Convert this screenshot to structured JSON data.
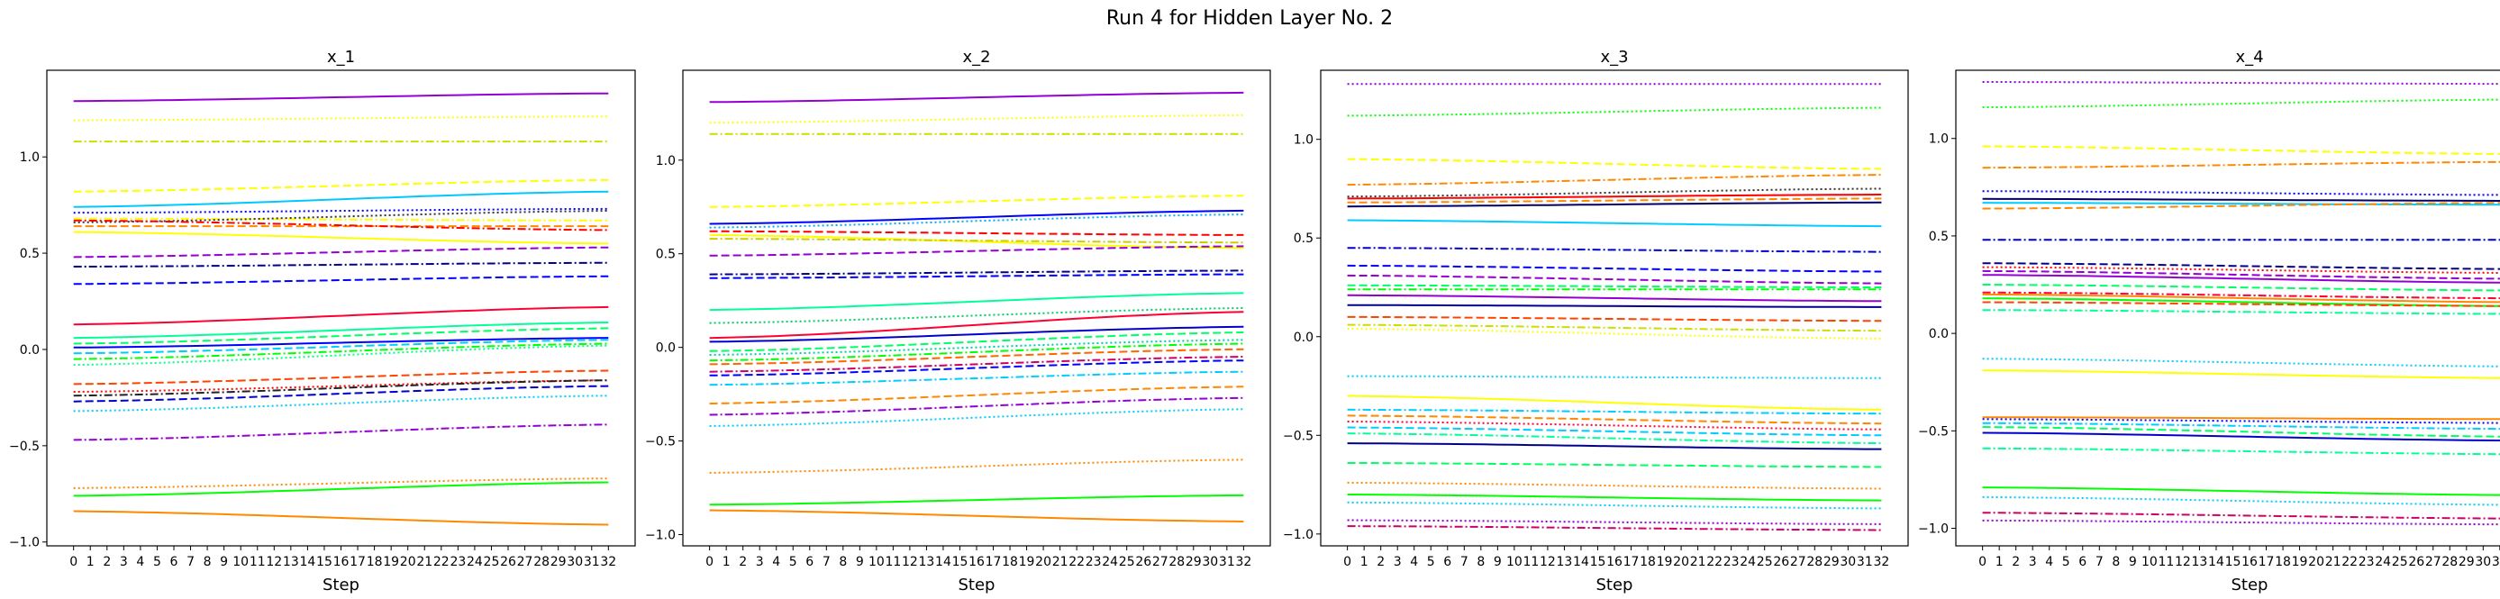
{
  "figure": {
    "title": "Run 4 for Hidden Layer No. 2"
  },
  "chart_data": [
    {
      "type": "line",
      "title": "x_1",
      "xlabel": "Step",
      "ylabel": "",
      "xlim": [
        -1.6,
        33.6
      ],
      "ylim": [
        -1.02,
        1.45
      ],
      "yticks": [
        -1.0,
        -0.5,
        0.0,
        0.5,
        1.0
      ],
      "yticklabels": [
        "−1.0",
        "−0.5",
        "0.0",
        "0.5",
        "1.0"
      ],
      "series": [
        {
          "color": "#9400d3",
          "dash": "solid",
          "start": 1.29,
          "end": 1.33
        },
        {
          "color": "#ffff00",
          "dash": "dot",
          "start": 1.19,
          "end": 1.21
        },
        {
          "color": "#ccdd00",
          "dash": "dashdot",
          "start": 1.08,
          "end": 1.08
        },
        {
          "color": "#ffff00",
          "dash": "dash",
          "start": 0.82,
          "end": 0.88
        },
        {
          "color": "#00c8ff",
          "dash": "solid",
          "start": 0.74,
          "end": 0.82
        },
        {
          "color": "#0000ff",
          "dash": "dot",
          "start": 0.71,
          "end": 0.73
        },
        {
          "color": "#ffff00",
          "dash": "dashdot",
          "start": 0.68,
          "end": 0.67
        },
        {
          "color": "#333333",
          "dash": "dot",
          "start": 0.66,
          "end": 0.72
        },
        {
          "color": "#ff8800",
          "dash": "dash",
          "start": 0.64,
          "end": 0.64
        },
        {
          "color": "#ff0000",
          "dash": "dashdot",
          "start": 0.67,
          "end": 0.62
        },
        {
          "color": "#ffff00",
          "dash": "solid",
          "start": 0.61,
          "end": 0.55
        },
        {
          "color": "#9400d3",
          "dash": "dash",
          "start": 0.48,
          "end": 0.53
        },
        {
          "color": "#000088",
          "dash": "dashdot",
          "start": 0.43,
          "end": 0.45
        },
        {
          "color": "#0000ff",
          "dash": "dash",
          "start": 0.34,
          "end": 0.38
        },
        {
          "color": "#ff0033",
          "dash": "solid",
          "start": 0.13,
          "end": 0.22
        },
        {
          "color": "#00ff99",
          "dash": "solid",
          "start": 0.06,
          "end": 0.14
        },
        {
          "color": "#00ff66",
          "dash": "dash",
          "start": 0.03,
          "end": 0.11
        },
        {
          "color": "#0000ff",
          "dash": "solid",
          "start": 0.01,
          "end": 0.06
        },
        {
          "color": "#00ccff",
          "dash": "dash",
          "start": -0.02,
          "end": 0.05
        },
        {
          "color": "#00ff00",
          "dash": "dashdot",
          "start": -0.05,
          "end": 0.03
        },
        {
          "color": "#00ff88",
          "dash": "dot",
          "start": -0.08,
          "end": 0.02
        },
        {
          "color": "#ff4400",
          "dash": "dash",
          "start": -0.18,
          "end": -0.11
        },
        {
          "color": "#ff0000",
          "dash": "dot",
          "start": -0.22,
          "end": -0.16
        },
        {
          "color": "#222222",
          "dash": "dashdot",
          "start": -0.24,
          "end": -0.16
        },
        {
          "color": "#0000cc",
          "dash": "dash",
          "start": -0.27,
          "end": -0.19
        },
        {
          "color": "#00ccff",
          "dash": "dot",
          "start": -0.32,
          "end": -0.24
        },
        {
          "color": "#9400d3",
          "dash": "dashdot",
          "start": -0.47,
          "end": -0.39
        },
        {
          "color": "#ff8800",
          "dash": "dot",
          "start": -0.72,
          "end": -0.67
        },
        {
          "color": "#00ff00",
          "dash": "solid",
          "start": -0.76,
          "end": -0.69
        },
        {
          "color": "#ff8800",
          "dash": "solid",
          "start": -0.84,
          "end": -0.91
        }
      ]
    },
    {
      "type": "line",
      "title": "x_2",
      "xlabel": "Step",
      "ylabel": "",
      "xlim": [
        -1.6,
        33.6
      ],
      "ylim": [
        -1.06,
        1.48
      ],
      "yticks": [
        -1.0,
        -0.5,
        0.0,
        0.5,
        1.0
      ],
      "yticklabels": [
        "−1.0",
        "−0.5",
        "0.0",
        "0.5",
        "1.0"
      ],
      "series": [
        {
          "color": "#9400d3",
          "dash": "solid",
          "start": 1.31,
          "end": 1.36
        },
        {
          "color": "#ffff00",
          "dash": "dot",
          "start": 1.2,
          "end": 1.24
        },
        {
          "color": "#ccdd00",
          "dash": "dashdot",
          "start": 1.14,
          "end": 1.14
        },
        {
          "color": "#ffff00",
          "dash": "dash",
          "start": 0.75,
          "end": 0.81
        },
        {
          "color": "#0000ff",
          "dash": "solid",
          "start": 0.66,
          "end": 0.73
        },
        {
          "color": "#00aaff",
          "dash": "dot",
          "start": 0.64,
          "end": 0.71
        },
        {
          "color": "#ff0000",
          "dash": "dash",
          "start": 0.62,
          "end": 0.6
        },
        {
          "color": "#ffff00",
          "dash": "solid",
          "start": 0.6,
          "end": 0.53
        },
        {
          "color": "#cccc00",
          "dash": "dashdot",
          "start": 0.58,
          "end": 0.56
        },
        {
          "color": "#9400d3",
          "dash": "dash",
          "start": 0.49,
          "end": 0.54
        },
        {
          "color": "#000088",
          "dash": "dashdot",
          "start": 0.39,
          "end": 0.41
        },
        {
          "color": "#0000ff",
          "dash": "dash",
          "start": 0.37,
          "end": 0.39
        },
        {
          "color": "#00ff99",
          "dash": "solid",
          "start": 0.2,
          "end": 0.29
        },
        {
          "color": "#00cc66",
          "dash": "dot",
          "start": 0.13,
          "end": 0.21
        },
        {
          "color": "#ff0033",
          "dash": "solid",
          "start": 0.05,
          "end": 0.19
        },
        {
          "color": "#0000cc",
          "dash": "solid",
          "start": 0.03,
          "end": 0.11
        },
        {
          "color": "#00ff66",
          "dash": "dash",
          "start": -0.02,
          "end": 0.08
        },
        {
          "color": "#00ccaa",
          "dash": "dot",
          "start": -0.04,
          "end": 0.04
        },
        {
          "color": "#00ff00",
          "dash": "dashdot",
          "start": -0.07,
          "end": 0.02
        },
        {
          "color": "#ff6600",
          "dash": "dash",
          "start": -0.09,
          "end": -0.01
        },
        {
          "color": "#cc0066",
          "dash": "dashdot",
          "start": -0.13,
          "end": -0.05
        },
        {
          "color": "#0000ff",
          "dash": "dash",
          "start": -0.15,
          "end": -0.07
        },
        {
          "color": "#00ccff",
          "dash": "dashdot",
          "start": -0.2,
          "end": -0.13
        },
        {
          "color": "#ff8800",
          "dash": "dash",
          "start": -0.3,
          "end": -0.21
        },
        {
          "color": "#9400d3",
          "dash": "dashdot",
          "start": -0.36,
          "end": -0.27
        },
        {
          "color": "#00ccff",
          "dash": "dot",
          "start": -0.42,
          "end": -0.33
        },
        {
          "color": "#ff8800",
          "dash": "dot",
          "start": -0.67,
          "end": -0.6
        },
        {
          "color": "#00ff00",
          "dash": "solid",
          "start": -0.84,
          "end": -0.79
        },
        {
          "color": "#ff8800",
          "dash": "solid",
          "start": -0.87,
          "end": -0.93
        }
      ]
    },
    {
      "type": "line",
      "title": "x_3",
      "xlabel": "Step",
      "ylabel": "",
      "xlim": [
        -1.6,
        33.6
      ],
      "ylim": [
        -1.06,
        1.35
      ],
      "yticks": [
        -1.0,
        -0.5,
        0.0,
        0.5,
        1.0
      ],
      "yticklabels": [
        "−1.0",
        "−0.5",
        "0.0",
        "0.5",
        "1.0"
      ],
      "series": [
        {
          "color": "#9400d3",
          "dash": "dot",
          "start": 1.28,
          "end": 1.28
        },
        {
          "color": "#00ff00",
          "dash": "dot",
          "start": 1.12,
          "end": 1.16
        },
        {
          "color": "#ffff00",
          "dash": "dash",
          "start": 0.9,
          "end": 0.85
        },
        {
          "color": "#ff8800",
          "dash": "dashdot",
          "start": 0.77,
          "end": 0.82
        },
        {
          "color": "#333333",
          "dash": "dot",
          "start": 0.71,
          "end": 0.75
        },
        {
          "color": "#ff0000",
          "dash": "solid",
          "start": 0.7,
          "end": 0.72
        },
        {
          "color": "#ff8800",
          "dash": "dash",
          "start": 0.68,
          "end": 0.7
        },
        {
          "color": "#000066",
          "dash": "solid",
          "start": 0.66,
          "end": 0.68
        },
        {
          "color": "#00ccff",
          "dash": "solid",
          "start": 0.59,
          "end": 0.56
        },
        {
          "color": "#0000cc",
          "dash": "dashdot",
          "start": 0.45,
          "end": 0.43
        },
        {
          "color": "#0000ff",
          "dash": "dash",
          "start": 0.36,
          "end": 0.33
        },
        {
          "color": "#9400d3",
          "dash": "dash",
          "start": 0.31,
          "end": 0.27
        },
        {
          "color": "#00ff66",
          "dash": "dash",
          "start": 0.26,
          "end": 0.25
        },
        {
          "color": "#00ff00",
          "dash": "dashdot",
          "start": 0.24,
          "end": 0.24
        },
        {
          "color": "#9400d3",
          "dash": "solid",
          "start": 0.21,
          "end": 0.18
        },
        {
          "color": "#000088",
          "dash": "solid",
          "start": 0.16,
          "end": 0.15
        },
        {
          "color": "#ff4400",
          "dash": "dash",
          "start": 0.1,
          "end": 0.08
        },
        {
          "color": "#ccdd00",
          "dash": "dashdot",
          "start": 0.06,
          "end": 0.03
        },
        {
          "color": "#ffff00",
          "dash": "dot",
          "start": 0.04,
          "end": -0.01
        },
        {
          "color": "#00ccff",
          "dash": "dot",
          "start": -0.2,
          "end": -0.21
        },
        {
          "color": "#ffff00",
          "dash": "solid",
          "start": -0.3,
          "end": -0.37
        },
        {
          "color": "#00ccff",
          "dash": "dashdot",
          "start": -0.37,
          "end": -0.39
        },
        {
          "color": "#ff8800",
          "dash": "dash",
          "start": -0.4,
          "end": -0.44
        },
        {
          "color": "#ff0033",
          "dash": "dot",
          "start": -0.43,
          "end": -0.47
        },
        {
          "color": "#00ccff",
          "dash": "dash",
          "start": -0.46,
          "end": -0.5
        },
        {
          "color": "#00ff99",
          "dash": "dashdot",
          "start": -0.49,
          "end": -0.54
        },
        {
          "color": "#000088",
          "dash": "solid",
          "start": -0.54,
          "end": -0.57
        },
        {
          "color": "#00ff66",
          "dash": "dash",
          "start": -0.64,
          "end": -0.66
        },
        {
          "color": "#ff8800",
          "dash": "dot",
          "start": -0.74,
          "end": -0.77
        },
        {
          "color": "#00ff00",
          "dash": "solid",
          "start": -0.8,
          "end": -0.83
        },
        {
          "color": "#00ccff",
          "dash": "dot",
          "start": -0.84,
          "end": -0.87
        },
        {
          "color": "#9400d3",
          "dash": "dot",
          "start": -0.93,
          "end": -0.95
        },
        {
          "color": "#cc0066",
          "dash": "dashdot",
          "start": -0.96,
          "end": -0.98
        }
      ]
    },
    {
      "type": "line",
      "title": "x_4",
      "xlabel": "Step",
      "ylabel": "",
      "xlim": [
        -1.6,
        33.6
      ],
      "ylim": [
        -1.09,
        1.35
      ],
      "yticks": [
        -1.0,
        -0.5,
        0.0,
        0.5,
        1.0
      ],
      "yticklabels": [
        "−1.0",
        "−0.5",
        "0.0",
        "0.5",
        "1.0"
      ],
      "series": [
        {
          "color": "#9400d3",
          "dash": "dot",
          "start": 1.29,
          "end": 1.28
        },
        {
          "color": "#00ff00",
          "dash": "dot",
          "start": 1.16,
          "end": 1.2
        },
        {
          "color": "#ffff00",
          "dash": "dash",
          "start": 0.96,
          "end": 0.92
        },
        {
          "color": "#ff8800",
          "dash": "dashdot",
          "start": 0.85,
          "end": 0.88
        },
        {
          "color": "#0000ff",
          "dash": "dot",
          "start": 0.73,
          "end": 0.71
        },
        {
          "color": "#000066",
          "dash": "solid",
          "start": 0.69,
          "end": 0.68
        },
        {
          "color": "#00ccff",
          "dash": "solid",
          "start": 0.67,
          "end": 0.66
        },
        {
          "color": "#ff8800",
          "dash": "dash",
          "start": 0.64,
          "end": 0.67
        },
        {
          "color": "#0000cc",
          "dash": "dashdot",
          "start": 0.48,
          "end": 0.48
        },
        {
          "color": "#000088",
          "dash": "dash",
          "start": 0.36,
          "end": 0.33
        },
        {
          "color": "#ff0000",
          "dash": "dot",
          "start": 0.34,
          "end": 0.31
        },
        {
          "color": "#9400d3",
          "dash": "dash",
          "start": 0.32,
          "end": 0.28
        },
        {
          "color": "#9400d3",
          "dash": "solid",
          "start": 0.3,
          "end": 0.26
        },
        {
          "color": "#00ff66",
          "dash": "dash",
          "start": 0.25,
          "end": 0.22
        },
        {
          "color": "#ff0033",
          "dash": "dashdot",
          "start": 0.21,
          "end": 0.18
        },
        {
          "color": "#ff8800",
          "dash": "solid",
          "start": 0.2,
          "end": 0.16
        },
        {
          "color": "#00ff00",
          "dash": "solid",
          "start": 0.18,
          "end": 0.14
        },
        {
          "color": "#ff4400",
          "dash": "dash",
          "start": 0.16,
          "end": 0.14
        },
        {
          "color": "#00ff99",
          "dash": "dashdot",
          "start": 0.12,
          "end": 0.1
        },
        {
          "color": "#00ccff",
          "dash": "dot",
          "start": -0.13,
          "end": -0.17
        },
        {
          "color": "#ffff00",
          "dash": "solid",
          "start": -0.19,
          "end": -0.23
        },
        {
          "color": "#ff8800",
          "dash": "solid",
          "start": -0.43,
          "end": -0.44
        },
        {
          "color": "#0000ff",
          "dash": "dot",
          "start": -0.44,
          "end": -0.46
        },
        {
          "color": "#00ccff",
          "dash": "dashdot",
          "start": -0.46,
          "end": -0.49
        },
        {
          "color": "#00ff66",
          "dash": "dash",
          "start": -0.48,
          "end": -0.53
        },
        {
          "color": "#0000cc",
          "dash": "solid",
          "start": -0.51,
          "end": -0.55
        },
        {
          "color": "#00ff99",
          "dash": "dashdot",
          "start": -0.59,
          "end": -0.62
        },
        {
          "color": "#00ff00",
          "dash": "solid",
          "start": -0.79,
          "end": -0.83
        },
        {
          "color": "#00ccff",
          "dash": "dot",
          "start": -0.84,
          "end": -0.88
        },
        {
          "color": "#cc0066",
          "dash": "dashdot",
          "start": -0.92,
          "end": -0.95
        },
        {
          "color": "#9400d3",
          "dash": "dot",
          "start": -0.96,
          "end": -0.98
        }
      ]
    }
  ],
  "x_ticks": [
    "0",
    "1",
    "2",
    "3",
    "4",
    "5",
    "6",
    "7",
    "8",
    "9",
    "10",
    "11",
    "12",
    "13",
    "14",
    "15",
    "16",
    "17",
    "18",
    "19",
    "20",
    "21",
    "22",
    "23",
    "24",
    "25",
    "26",
    "27",
    "28",
    "29",
    "30",
    "31",
    "32"
  ]
}
